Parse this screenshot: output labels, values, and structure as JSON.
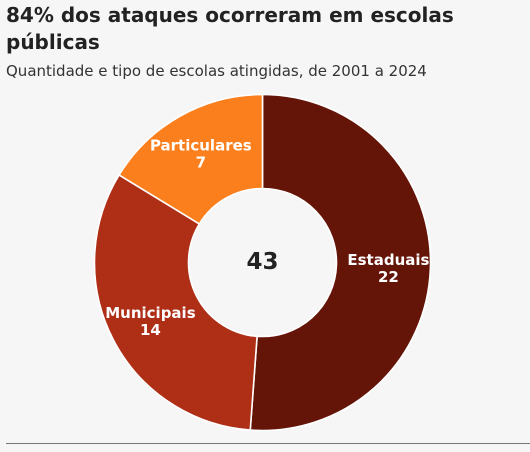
{
  "chart_data": {
    "type": "pie",
    "title": "84% dos ataques ocorreram em escolas públicas",
    "subtitle": "Quantidade e tipo de escolas atingidas, de 2001 a 2024",
    "total_label": "43",
    "slices": [
      {
        "label": "Estaduais",
        "value": 22,
        "color": "#651507"
      },
      {
        "label": "Municipais",
        "value": 14,
        "color": "#ae2e16"
      },
      {
        "label": "Particulares",
        "value": 7,
        "color": "#fc7f1e"
      }
    ]
  }
}
